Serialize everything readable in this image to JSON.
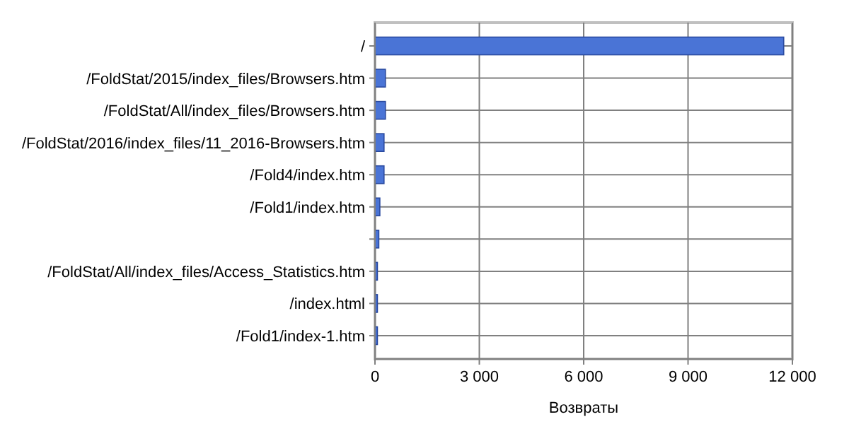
{
  "chart_data": {
    "type": "bar",
    "orientation": "horizontal",
    "xlabel": "Возвраты",
    "categories": [
      "/",
      "/FoldStat/2015/index_files/Browsers.htm",
      "/FoldStat/All/index_files/Browsers.htm",
      "/FoldStat/2016/index_files/11_2016-Browsers.htm",
      "/Fold4/index.htm",
      "/Fold1/index.htm",
      null,
      "/FoldStat/All/index_files/Access_Statistics.htm",
      "/index.html",
      "/Fold1/index-1.htm"
    ],
    "values": [
      11750,
      300,
      300,
      260,
      260,
      140,
      110,
      70,
      70,
      70
    ],
    "color": "#4a74d6",
    "xlim": [
      0,
      12000
    ],
    "xticks": [
      0,
      {
        "value": 3000,
        "label": "3 000"
      },
      {
        "value": 6000,
        "label": "6 000"
      },
      {
        "value": 9000,
        "label": "9 000"
      },
      {
        "value": 12000,
        "label": "12 000"
      }
    ],
    "grid": true
  }
}
